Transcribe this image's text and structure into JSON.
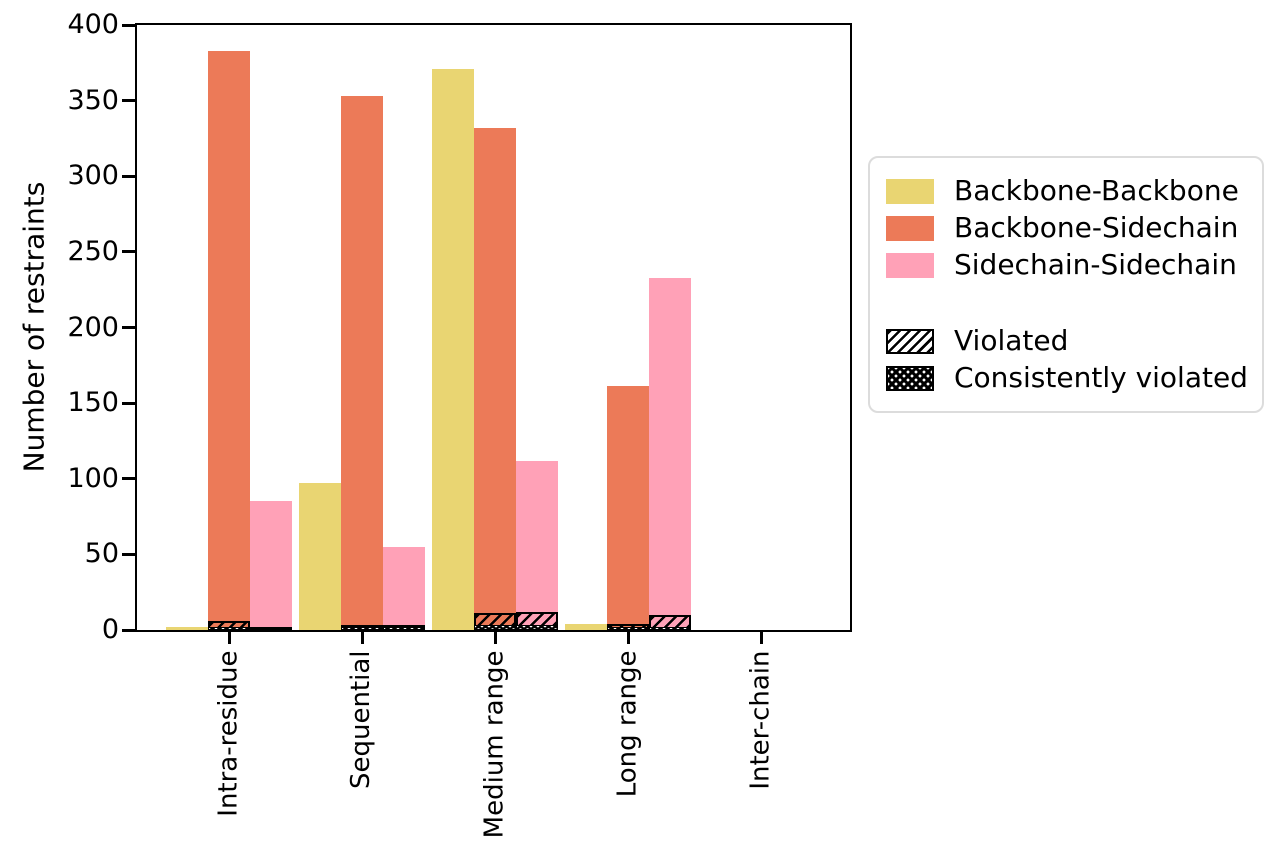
{
  "chart_data": {
    "type": "bar",
    "title": "",
    "xlabel": "",
    "ylabel": "Number of restraints",
    "ylim": [
      0,
      400
    ],
    "yticks": [
      0,
      50,
      100,
      150,
      200,
      250,
      300,
      350,
      400
    ],
    "grid": false,
    "legend_position": "right",
    "categories": [
      "Intra-residue",
      "Sequential",
      "Medium range",
      "Long range",
      "Inter-chain"
    ],
    "series": [
      {
        "name": "Backbone-Backbone",
        "color": "#e9d572",
        "values": [
          2,
          97,
          371,
          4,
          0
        ],
        "violated": [
          0,
          0,
          0,
          0,
          0
        ],
        "consistently_violated": [
          0,
          0,
          0,
          0,
          0
        ]
      },
      {
        "name": "Backbone-Sidechain",
        "color": "#ec7a58",
        "values": [
          383,
          353,
          332,
          161,
          0
        ],
        "violated": [
          6,
          3,
          11,
          4,
          0
        ],
        "consistently_violated": [
          2,
          2,
          3,
          2,
          0
        ]
      },
      {
        "name": "Sidechain-Sidechain",
        "color": "#ffa1b7",
        "values": [
          85,
          55,
          112,
          233,
          0
        ],
        "violated": [
          1,
          3,
          12,
          10,
          0
        ],
        "consistently_violated": [
          0,
          2,
          3,
          2,
          0
        ]
      }
    ],
    "overlays": [
      {
        "name": "Violated",
        "pattern": "diagonal-hatch"
      },
      {
        "name": "Consistently violated",
        "pattern": "dot-hatch"
      }
    ],
    "axis_color": "#000000",
    "legend_border_color": "#dcdcdc"
  }
}
